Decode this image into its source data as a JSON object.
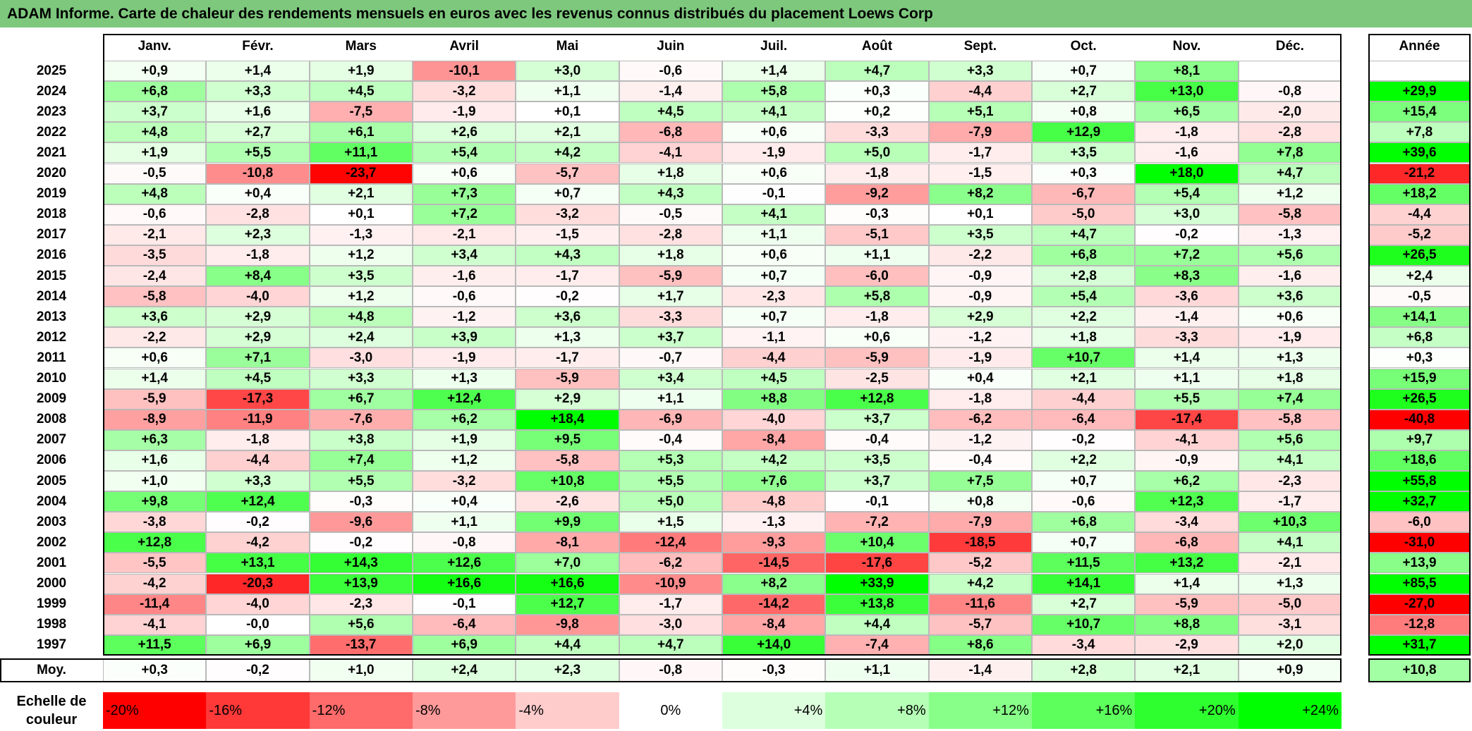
{
  "title": "ADAM Informe. Carte de chaleur des rendements mensuels en euros avec les revenus connus distribués du placement Loews Corp",
  "chart_data": {
    "type": "heatmap",
    "columns": [
      "Janv.",
      "Févr.",
      "Mars",
      "Avril",
      "Mai",
      "Juin",
      "Juil.",
      "Août",
      "Sept.",
      "Oct.",
      "Nov.",
      "Déc."
    ],
    "annual_header": "Année",
    "rows": [
      {
        "year": "2025",
        "values": [
          "+0,9",
          "+1,4",
          "+1,9",
          "-10,1",
          "+3,0",
          "-0,6",
          "+1,4",
          "+4,7",
          "+3,3",
          "+0,7",
          "+8,1",
          ""
        ],
        "annual": ""
      },
      {
        "year": "2024",
        "values": [
          "+6,8",
          "+3,3",
          "+4,5",
          "-3,2",
          "+1,1",
          "-1,4",
          "+5,8",
          "+0,3",
          "-4,4",
          "+2,7",
          "+13,0",
          "-0,8"
        ],
        "annual": "+29,9"
      },
      {
        "year": "2023",
        "values": [
          "+3,7",
          "+1,6",
          "-7,5",
          "-1,9",
          "+0,1",
          "+4,5",
          "+4,1",
          "+0,2",
          "+5,1",
          "+0,8",
          "+6,5",
          "-2,0"
        ],
        "annual": "+15,4"
      },
      {
        "year": "2022",
        "values": [
          "+4,8",
          "+2,7",
          "+6,1",
          "+2,6",
          "+2,1",
          "-6,8",
          "+0,6",
          "-3,3",
          "-7,9",
          "+12,9",
          "-1,8",
          "-2,8"
        ],
        "annual": "+7,8"
      },
      {
        "year": "2021",
        "values": [
          "+1,9",
          "+5,5",
          "+11,1",
          "+5,4",
          "+4,2",
          "-4,1",
          "-1,9",
          "+5,0",
          "-1,7",
          "+3,5",
          "-1,6",
          "+7,8"
        ],
        "annual": "+39,6"
      },
      {
        "year": "2020",
        "values": [
          "-0,5",
          "-10,8",
          "-23,7",
          "+0,6",
          "-5,7",
          "+1,8",
          "+0,6",
          "-1,8",
          "-1,5",
          "+0,3",
          "+18,0",
          "+4,7"
        ],
        "annual": "-21,2"
      },
      {
        "year": "2019",
        "values": [
          "+4,8",
          "+0,4",
          "+2,1",
          "+7,3",
          "+0,7",
          "+4,3",
          "-0,1",
          "-9,2",
          "+8,2",
          "-6,7",
          "+5,4",
          "+1,2"
        ],
        "annual": "+18,2"
      },
      {
        "year": "2018",
        "values": [
          "-0,6",
          "-2,8",
          "+0,1",
          "+7,2",
          "-3,2",
          "-0,5",
          "+4,1",
          "-0,3",
          "+0,1",
          "-5,0",
          "+3,0",
          "-5,8"
        ],
        "annual": "-4,4"
      },
      {
        "year": "2017",
        "values": [
          "-2,1",
          "+2,3",
          "-1,3",
          "-2,1",
          "-1,5",
          "-2,8",
          "+1,1",
          "-5,1",
          "+3,5",
          "+4,7",
          "-0,2",
          "-1,3"
        ],
        "annual": "-5,2"
      },
      {
        "year": "2016",
        "values": [
          "-3,5",
          "-1,8",
          "+1,2",
          "+3,4",
          "+4,3",
          "+1,8",
          "+0,6",
          "+1,1",
          "-2,2",
          "+6,8",
          "+7,2",
          "+5,6"
        ],
        "annual": "+26,5"
      },
      {
        "year": "2015",
        "values": [
          "-2,4",
          "+8,4",
          "+3,5",
          "-1,6",
          "-1,7",
          "-5,9",
          "+0,7",
          "-6,0",
          "-0,9",
          "+2,8",
          "+8,3",
          "-1,6"
        ],
        "annual": "+2,4"
      },
      {
        "year": "2014",
        "values": [
          "-5,8",
          "-4,0",
          "+1,2",
          "-0,6",
          "-0,2",
          "+1,7",
          "-2,3",
          "+5,8",
          "-0,9",
          "+5,4",
          "-3,6",
          "+3,6"
        ],
        "annual": "-0,5"
      },
      {
        "year": "2013",
        "values": [
          "+3,6",
          "+2,9",
          "+4,8",
          "-1,2",
          "+3,6",
          "-3,3",
          "+0,7",
          "-1,8",
          "+2,9",
          "+2,2",
          "-1,4",
          "+0,6"
        ],
        "annual": "+14,1"
      },
      {
        "year": "2012",
        "values": [
          "-2,2",
          "+2,9",
          "+2,4",
          "+3,9",
          "+1,3",
          "+3,7",
          "-1,1",
          "+0,6",
          "-1,2",
          "+1,8",
          "-3,3",
          "-1,9"
        ],
        "annual": "+6,8"
      },
      {
        "year": "2011",
        "values": [
          "+0,6",
          "+7,1",
          "-3,0",
          "-1,9",
          "-1,7",
          "-0,7",
          "-4,4",
          "-5,9",
          "-1,9",
          "+10,7",
          "+1,4",
          "+1,3"
        ],
        "annual": "+0,3"
      },
      {
        "year": "2010",
        "values": [
          "+1,4",
          "+4,5",
          "+3,3",
          "+1,3",
          "-5,9",
          "+3,4",
          "+4,5",
          "-2,5",
          "+0,4",
          "+2,1",
          "+1,1",
          "+1,8"
        ],
        "annual": "+15,9"
      },
      {
        "year": "2009",
        "values": [
          "-5,9",
          "-17,3",
          "+6,7",
          "+12,4",
          "+2,9",
          "+1,1",
          "+8,8",
          "+12,8",
          "-1,8",
          "-4,4",
          "+5,5",
          "+7,4"
        ],
        "annual": "+26,5"
      },
      {
        "year": "2008",
        "values": [
          "-8,9",
          "-11,9",
          "-7,6",
          "+6,2",
          "+18,4",
          "-6,9",
          "-4,0",
          "+3,7",
          "-6,2",
          "-6,4",
          "-17,4",
          "-5,8"
        ],
        "annual": "-40,8"
      },
      {
        "year": "2007",
        "values": [
          "+6,3",
          "-1,8",
          "+3,8",
          "+1,9",
          "+9,5",
          "-0,4",
          "-8,4",
          "-0,4",
          "-1,2",
          "-0,2",
          "-4,1",
          "+5,6"
        ],
        "annual": "+9,7"
      },
      {
        "year": "2006",
        "values": [
          "+1,6",
          "-4,4",
          "+7,4",
          "+1,2",
          "-5,8",
          "+5,3",
          "+4,2",
          "+3,5",
          "-0,4",
          "+2,2",
          "-0,9",
          "+4,1"
        ],
        "annual": "+18,6"
      },
      {
        "year": "2005",
        "values": [
          "+1,0",
          "+3,3",
          "+5,5",
          "-3,2",
          "+10,8",
          "+5,5",
          "+7,6",
          "+3,7",
          "+7,5",
          "+0,7",
          "+6,2",
          "-2,3"
        ],
        "annual": "+55,8"
      },
      {
        "year": "2004",
        "values": [
          "+9,8",
          "+12,4",
          "-0,3",
          "+0,4",
          "-2,6",
          "+5,0",
          "-4,8",
          "-0,1",
          "+0,8",
          "-0,6",
          "+12,3",
          "-1,7"
        ],
        "annual": "+32,7"
      },
      {
        "year": "2003",
        "values": [
          "-3,8",
          "-0,2",
          "-9,6",
          "+1,1",
          "+9,9",
          "+1,5",
          "-1,3",
          "-7,2",
          "-7,9",
          "+6,8",
          "-3,4",
          "+10,3"
        ],
        "annual": "-6,0"
      },
      {
        "year": "2002",
        "values": [
          "+12,8",
          "-4,2",
          "-0,2",
          "-0,8",
          "-8,1",
          "-12,4",
          "-9,3",
          "+10,4",
          "-18,5",
          "+0,7",
          "-6,8",
          "+4,1"
        ],
        "annual": "-31,0"
      },
      {
        "year": "2001",
        "values": [
          "-5,5",
          "+13,1",
          "+14,3",
          "+12,6",
          "+7,0",
          "-6,2",
          "-14,5",
          "-17,6",
          "-5,2",
          "+11,5",
          "+13,2",
          "-2,1"
        ],
        "annual": "+13,9"
      },
      {
        "year": "2000",
        "values": [
          "-4,2",
          "-20,3",
          "+13,9",
          "+16,6",
          "+16,6",
          "-10,9",
          "+8,2",
          "+33,9",
          "+4,2",
          "+14,1",
          "+1,4",
          "+1,3"
        ],
        "annual": "+85,5"
      },
      {
        "year": "1999",
        "values": [
          "-11,4",
          "-4,0",
          "-2,3",
          "-0,1",
          "+12,7",
          "-1,7",
          "-14,2",
          "+13,8",
          "-11,6",
          "+2,7",
          "-5,9",
          "-5,0"
        ],
        "annual": "-27,0"
      },
      {
        "year": "1998",
        "values": [
          "-4,1",
          "-0,0",
          "+5,6",
          "-6,4",
          "-9,8",
          "-3,0",
          "-8,4",
          "+4,4",
          "-5,7",
          "+10,7",
          "+8,8",
          "-3,1"
        ],
        "annual": "-12,8"
      },
      {
        "year": "1997",
        "values": [
          "+11,5",
          "+6,9",
          "-13,7",
          "+6,9",
          "+4,4",
          "+4,7",
          "+14,0",
          "-7,4",
          "+8,6",
          "-3,4",
          "-2,9",
          "+2,0"
        ],
        "annual": "+31,7"
      }
    ],
    "average": {
      "label": "Moy.",
      "values": [
        "+0,3",
        "-0,2",
        "+1,0",
        "+2,4",
        "+2,3",
        "-0,8",
        "-0,3",
        "+1,1",
        "-1,4",
        "+2,8",
        "+2,1",
        "+0,9"
      ],
      "annual": "+10,8"
    },
    "legend": {
      "title": "Echelle de couleur",
      "items": [
        "-20%",
        "-16%",
        "-12%",
        "-8%",
        "-4%",
        "0%",
        "+4%",
        "+8%",
        "+12%",
        "+16%",
        "+20%",
        "+24%"
      ],
      "colors": [
        "#ff0000",
        "#ff3838",
        "#ff6a6a",
        "#ff9a9a",
        "#ffcccc",
        "#ffffff",
        "#ddffdd",
        "#b6ffb6",
        "#88ff88",
        "#5cff5c",
        "#2eff2e",
        "#00ff00"
      ]
    }
  }
}
